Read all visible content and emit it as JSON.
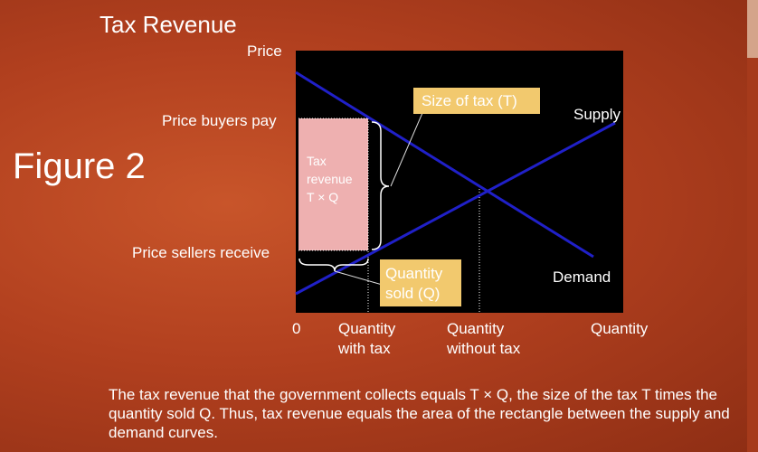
{
  "title": "Tax Revenue",
  "figure_label": "Figure 2",
  "axis": {
    "y_label": "Price",
    "x_label": "Quantity",
    "origin": "0"
  },
  "price_labels": {
    "buyers": "Price buyers pay",
    "sellers": "Price sellers receive"
  },
  "quantity_labels": {
    "with_tax_line1": "Quantity",
    "with_tax_line2": "with tax",
    "without_tax_line1": "Quantity",
    "without_tax_line2": "without tax"
  },
  "curves": {
    "supply": "Supply",
    "demand": "Demand"
  },
  "tax_box": {
    "line1": "Tax",
    "line2": "revenue",
    "line3": "T × Q"
  },
  "callouts": {
    "size_of_tax": "Size of tax (T)",
    "quantity_sold_line1": "Quantity",
    "quantity_sold_line2": "sold (Q)"
  },
  "caption": "The tax revenue that the government collects equals T × Q, the size of the tax T times the quantity sold Q. Thus, tax revenue equals the area of the rectangle between the supply and demand curves.",
  "colors": {
    "background": "#b84420",
    "plot_background": "#000000",
    "curve": "#2020c8",
    "tax_rect": "#eeb0b0",
    "callout_box": "#f2c96e"
  }
}
